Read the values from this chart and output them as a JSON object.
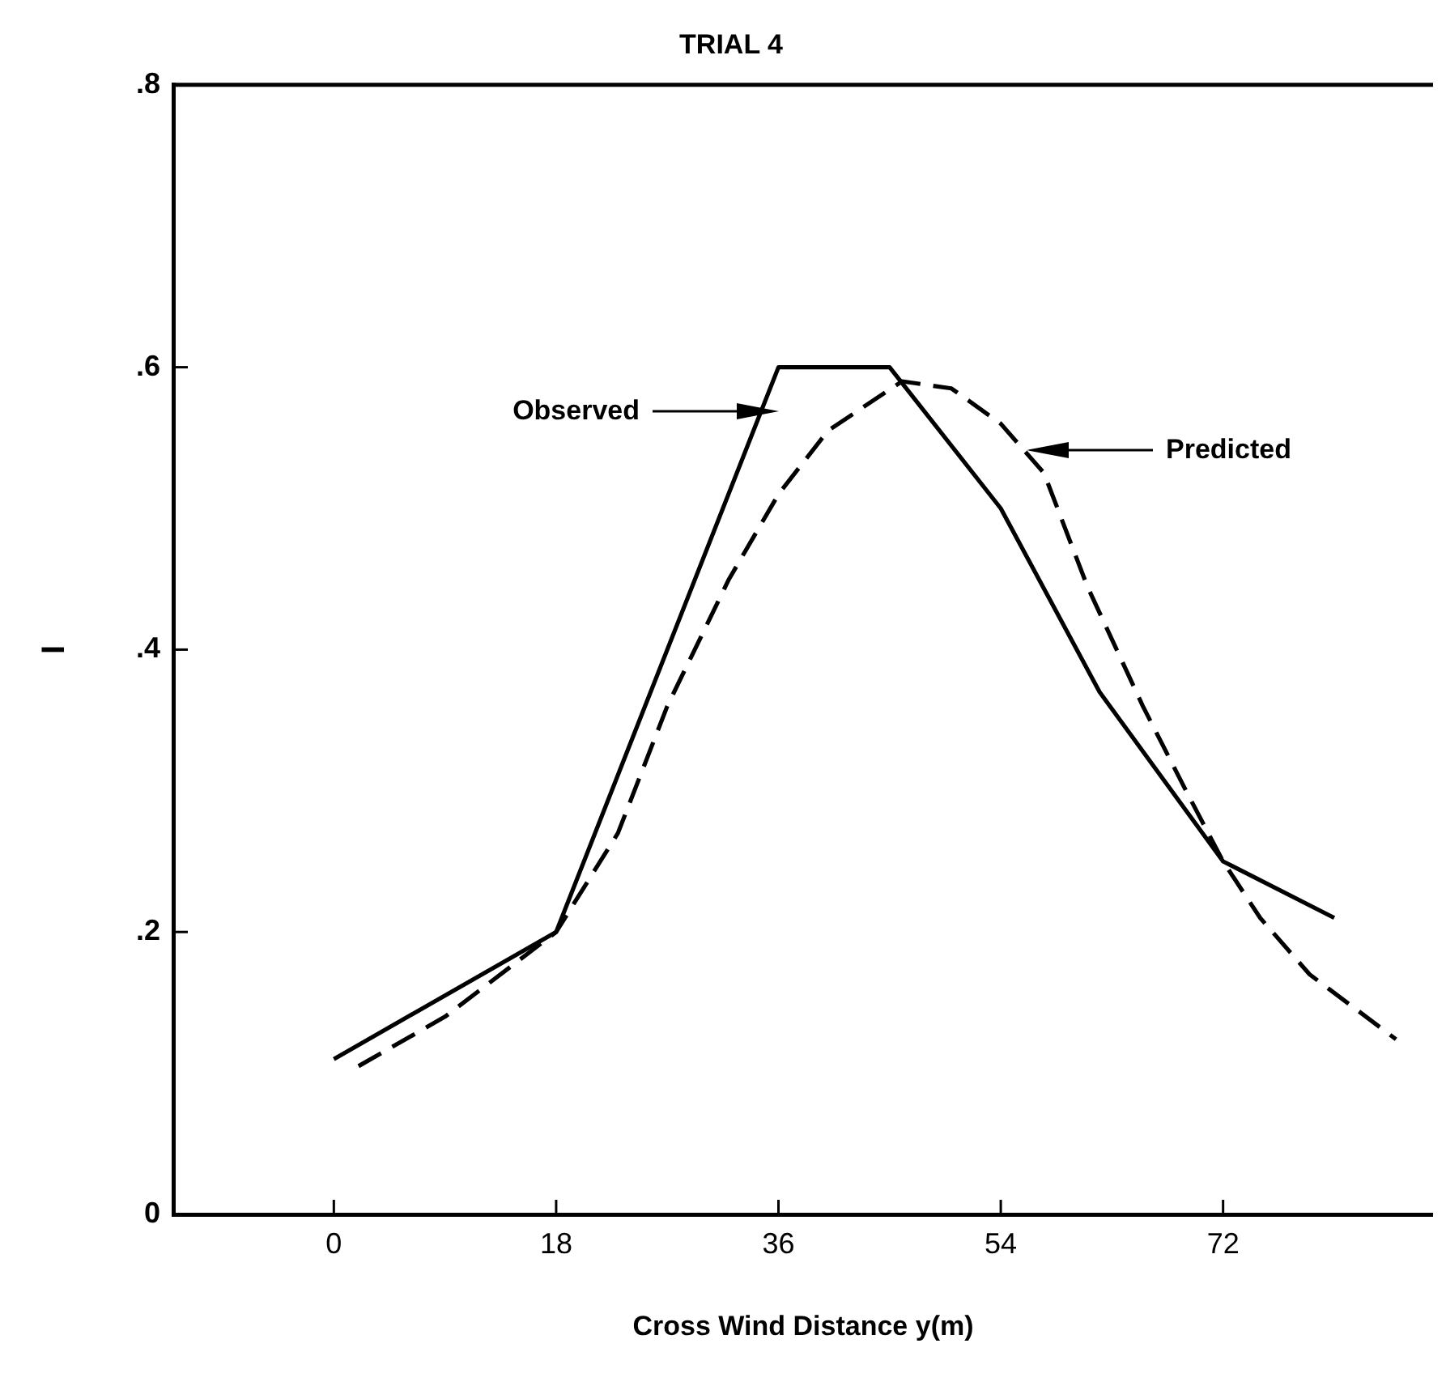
{
  "chart_data": {
    "type": "line",
    "title": "TRIAL 4",
    "xlabel": "Cross Wind Distance y(m)",
    "ylabel": "I",
    "xlim": [
      -13,
      89
    ],
    "xticks": [
      0,
      18,
      36,
      54,
      72
    ],
    "ylim": [
      0,
      0.8
    ],
    "yticks": [
      0,
      {
        "value": 0.2,
        "label": ".2"
      },
      {
        "value": 0.4,
        "label": ".4"
      },
      {
        "value": 0.6,
        "label": ".6"
      },
      {
        "value": 0.8,
        "label": ".8"
      }
    ],
    "grid": false,
    "legend": false,
    "marker": "none",
    "series": [
      {
        "color": "#000000",
        "line_style": "solid",
        "x": [
          0,
          18,
          36,
          45,
          54,
          62,
          72,
          81
        ],
        "values": [
          0.11,
          0.2,
          0.6,
          0.6,
          0.5,
          0.37,
          0.25,
          0.21
        ]
      },
      {
        "color": "#000000",
        "line_style": "dashed",
        "x": [
          2,
          9,
          18,
          23,
          27,
          32,
          36,
          40,
          46,
          50,
          54,
          57.5,
          61,
          65.5,
          69,
          72,
          75,
          79,
          86
        ],
        "values": [
          0.105,
          0.14,
          0.2,
          0.27,
          0.36,
          0.45,
          0.51,
          0.555,
          0.59,
          0.585,
          0.56,
          0.525,
          0.445,
          0.36,
          0.3,
          0.25,
          0.21,
          0.17,
          0.124
        ]
      }
    ],
    "annotations": [
      "Observed",
      "Predicted"
    ]
  }
}
